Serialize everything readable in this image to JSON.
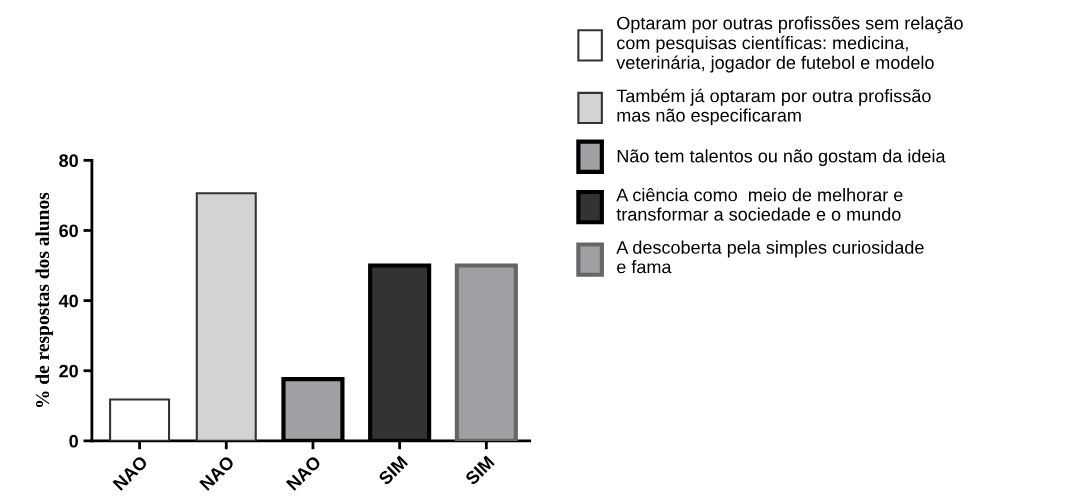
{
  "chart_data": {
    "type": "bar",
    "ylabel": "% de respostas dos alunos",
    "categories": [
      "NAO",
      "NAO",
      "NAO",
      "SIM",
      "SIM"
    ],
    "series": [
      {
        "name": "Optaram por outras profissões sem relação\ncom pesquisas científicas: medicina,\nveterinária, jogador de futebol e modelo",
        "color": "#ffffff",
        "values": [
          11.8,
          null,
          null,
          null,
          null
        ]
      },
      {
        "name": "Também já optaram por outra profissão\nmas não especificaram",
        "color": "#d3d3d3",
        "values": [
          null,
          70.6,
          null,
          null,
          null
        ]
      },
      {
        "name": "Não tem talentos ou não gostam da ideia",
        "color": "#a0a0a4",
        "values": [
          null,
          null,
          17.6,
          null,
          null
        ]
      },
      {
        "name": "A ciência como  meio de melhorar e\ntransformar a sociedade e o mundo",
        "color": "#333333",
        "values": [
          null,
          null,
          null,
          50,
          null
        ]
      },
      {
        "name": "A descoberta pela simples curiosidade\ne fama",
        "color": "#a0a0a4",
        "values": [
          null,
          null,
          null,
          null,
          50
        ]
      }
    ],
    "ylim": [
      0,
      80
    ],
    "yticks": [
      0,
      20,
      40,
      60,
      80
    ],
    "grid": false,
    "legend": "right"
  }
}
